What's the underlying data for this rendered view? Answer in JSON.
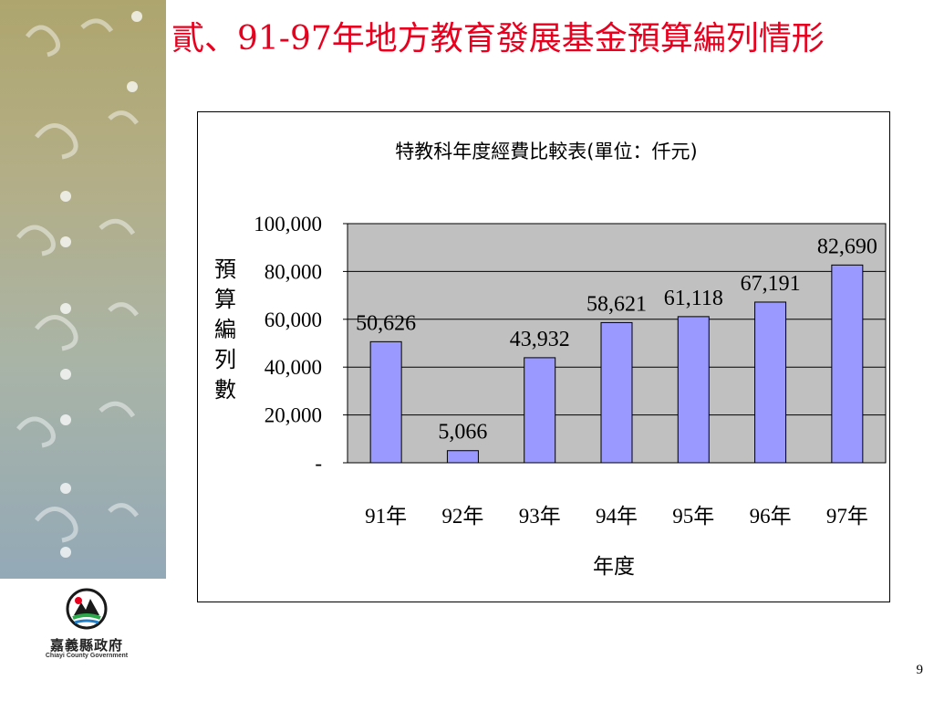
{
  "slide": {
    "title": "貳、91-97年地方教育發展基金預算編列情形",
    "page_number": "9",
    "title_color": "#e8001e"
  },
  "logo": {
    "name": "嘉義縣政府",
    "subtitle": "Chiayi County Government",
    "icon": "county-emblem-icon"
  },
  "sidebar": {
    "decoration": "swirl-pattern",
    "colors": [
      "#aea56e",
      "#b3ae86",
      "#a9b4a6",
      "#93a9b7"
    ]
  },
  "chart_data": {
    "type": "bar",
    "title": "特教科年度經費比較表(單位：仟元)",
    "xlabel": "年度",
    "ylabel": "預算編列數",
    "categories": [
      "91年",
      "92年",
      "93年",
      "94年",
      "95年",
      "96年",
      "97年"
    ],
    "values": [
      50626,
      5066,
      43932,
      58621,
      61118,
      67191,
      82690
    ],
    "value_labels": [
      "50,626",
      "5,066",
      "43,932",
      "58,621",
      "61,118",
      "67,191",
      "82,690"
    ],
    "ylim": [
      0,
      100000
    ],
    "yticks": [
      0,
      20000,
      40000,
      60000,
      80000,
      100000
    ],
    "ytick_labels": [
      "-",
      "20,000",
      "40,000",
      "60,000",
      "80,000",
      "100,000"
    ],
    "grid": true,
    "legend": "none",
    "bar_color": "#9999ff",
    "plot_bg": "#c0c0c0"
  }
}
